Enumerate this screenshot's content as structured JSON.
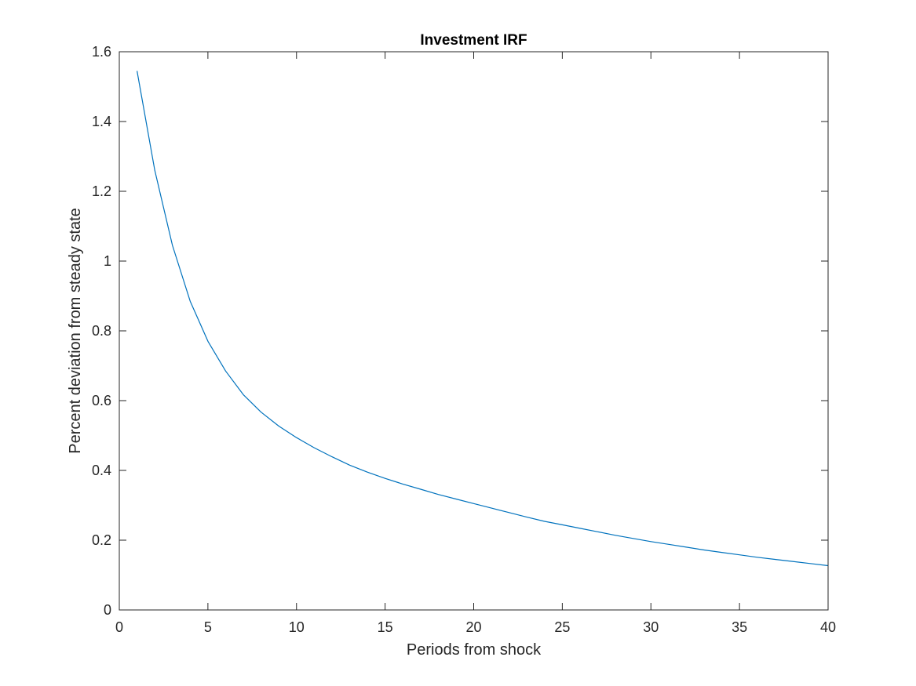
{
  "chart_data": {
    "type": "line",
    "title": "Investment IRF",
    "xlabel": "Periods from shock",
    "ylabel": "Percent deviation from steady state",
    "xlim": [
      0,
      40
    ],
    "ylim": [
      0,
      1.6
    ],
    "xticks": [
      0,
      5,
      10,
      15,
      20,
      25,
      30,
      35,
      40
    ],
    "yticks": [
      0,
      0.2,
      0.4,
      0.6,
      0.8,
      1,
      1.2,
      1.4,
      1.6
    ],
    "xtick_labels": [
      "0",
      "5",
      "10",
      "15",
      "20",
      "25",
      "30",
      "35",
      "40"
    ],
    "ytick_labels": [
      "0",
      "0.2",
      "0.4",
      "0.6",
      "0.8",
      "1",
      "1.2",
      "1.4",
      "1.6"
    ],
    "grid": false,
    "box": true,
    "series": [
      {
        "color": "#0072BD",
        "x": [
          1,
          2,
          3,
          4,
          5,
          6,
          7,
          8,
          9,
          10,
          11,
          12,
          13,
          14,
          15,
          16,
          17,
          18,
          19,
          20,
          21,
          22,
          23,
          24,
          25,
          26,
          27,
          28,
          29,
          30,
          31,
          32,
          33,
          34,
          35,
          36,
          37,
          38,
          39,
          40
        ],
        "y": [
          1.545,
          1.26,
          1.045,
          0.885,
          0.77,
          0.685,
          0.617,
          0.567,
          0.527,
          0.494,
          0.465,
          0.439,
          0.415,
          0.395,
          0.377,
          0.361,
          0.346,
          0.331,
          0.318,
          0.305,
          0.292,
          0.279,
          0.266,
          0.254,
          0.244,
          0.234,
          0.224,
          0.214,
          0.205,
          0.196,
          0.188,
          0.18,
          0.172,
          0.165,
          0.158,
          0.151,
          0.145,
          0.139,
          0.133,
          0.127
        ]
      }
    ]
  }
}
